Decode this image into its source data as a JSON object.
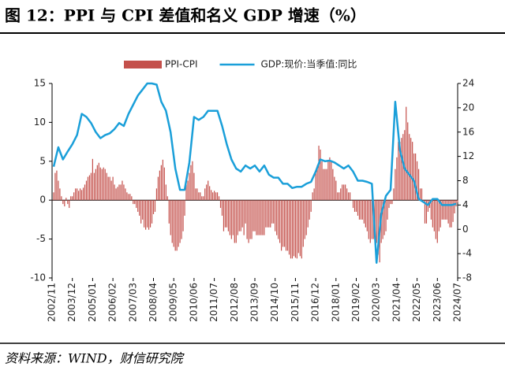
{
  "chart_data": {
    "type": "bar-line",
    "title": "图 12：PPI 与 CPI 差值和名义 GDP 增速（%）",
    "source": "资料来源：WIND，财信研究院",
    "categories": [
      "2002/11",
      null,
      null,
      null,
      null,
      null,
      null,
      null,
      null,
      null,
      null,
      null,
      null,
      "2003/12",
      null,
      null,
      null,
      null,
      null,
      null,
      null,
      null,
      null,
      null,
      null,
      null,
      "2005/01",
      null,
      null,
      null,
      null,
      null,
      null,
      null,
      null,
      null,
      null,
      null,
      null,
      "2006/02",
      null,
      null,
      null,
      null,
      null,
      null,
      null,
      null,
      null,
      null,
      null,
      null,
      "2007/03",
      null,
      null,
      null,
      null,
      null,
      null,
      null,
      null,
      null,
      null,
      null,
      null,
      "2008/04",
      null,
      null,
      null,
      null,
      null,
      null,
      null,
      null,
      null,
      null,
      null,
      null,
      "2009/05",
      null,
      null,
      null,
      null,
      null,
      null,
      null,
      null,
      null,
      null,
      null,
      null,
      "2010/06",
      null,
      null,
      null,
      null,
      null,
      null,
      null,
      null,
      null,
      null,
      null,
      null,
      "2011/07",
      null,
      null,
      null,
      null,
      null,
      null,
      null,
      null,
      null,
      null,
      null,
      null,
      "2012/08",
      null,
      null,
      null,
      null,
      null,
      null,
      null,
      null,
      null,
      null,
      null,
      null,
      "2013/09",
      null,
      null,
      null,
      null,
      null,
      null,
      null,
      null,
      null,
      null,
      null,
      null,
      "2014/10",
      null,
      null,
      null,
      null,
      null,
      null,
      null,
      null,
      null,
      null,
      null,
      null,
      "2015/11",
      null,
      null,
      null,
      null,
      null,
      null,
      null,
      null,
      null,
      null,
      null,
      null,
      "2016/12",
      null,
      null,
      null,
      null,
      null,
      null,
      null,
      null,
      null,
      null,
      null,
      null,
      "2018/01",
      null,
      null,
      null,
      null,
      null,
      null,
      null,
      null,
      null,
      null,
      null,
      null,
      "2019/02",
      null,
      null,
      null,
      null,
      null,
      null,
      null,
      null,
      null,
      null,
      null,
      null,
      "2020/03",
      null,
      null,
      null,
      null,
      null,
      null,
      null,
      null,
      null,
      null,
      null,
      null,
      "2021/04",
      null,
      null,
      null,
      null,
      null,
      null,
      null,
      null,
      null,
      null,
      null,
      null,
      "2022/05",
      null,
      null,
      null,
      null,
      null,
      null,
      null,
      null,
      null,
      null,
      null,
      null,
      "2023/06",
      null,
      null,
      null,
      null,
      null,
      null,
      null,
      null,
      null,
      null,
      null,
      null,
      "2024/07"
    ],
    "series": [
      {
        "name": "PPI-CPI",
        "type": "bar",
        "color": "#c4504b",
        "values": [
          0,
          1,
          3.5,
          3.8,
          2.5,
          1.5,
          0.5,
          -0.5,
          -0.8,
          0.3,
          -0.5,
          -1,
          0.5,
          0.5,
          1,
          1.5,
          1.5,
          1.2,
          1.5,
          1.3,
          1.6,
          2,
          2.5,
          3,
          3.2,
          3.5,
          5.3,
          3.5,
          4,
          4.5,
          4.8,
          4.2,
          4,
          4.2,
          4,
          3.5,
          3,
          3,
          2.5,
          3,
          2,
          1.5,
          1.7,
          2,
          2,
          2.5,
          2,
          1.5,
          1,
          0.8,
          0.8,
          0.5,
          -0.5,
          -0.5,
          -1,
          -1.5,
          -2,
          -3,
          -2.5,
          -3.5,
          -3.8,
          -3.5,
          -3.8,
          -3.5,
          -3,
          -1.8,
          -1.5,
          1.5,
          3,
          3.8,
          4.5,
          5.2,
          4.2,
          2,
          0.5,
          -3,
          -4.5,
          -5.5,
          -6,
          -6.5,
          -6.5,
          -6,
          -5.5,
          -5,
          -4,
          -2,
          2,
          2.5,
          3.5,
          4.5,
          5,
          3.5,
          1.5,
          1.5,
          1,
          1,
          0.5,
          0.5,
          1.5,
          2,
          2.5,
          1.8,
          1.3,
          1,
          1.2,
          1,
          1,
          0.5,
          -1,
          -2,
          -4,
          -3.5,
          -3.5,
          -4,
          -4.5,
          -5,
          -4.5,
          -5.5,
          -5.5,
          -4.5,
          -4,
          -4,
          -3.5,
          -4.5,
          -3,
          -5,
          -5.5,
          -5,
          -5,
          -4,
          -4,
          -4.5,
          -4.5,
          -4.5,
          -4.5,
          -4.5,
          -4.5,
          -3.5,
          -3.5,
          -3.5,
          -3.5,
          -3,
          -3,
          -4,
          -4.5,
          -5,
          -5.5,
          -6.5,
          -6,
          -6,
          -6.5,
          -6.5,
          -7,
          -7.5,
          -7.5,
          -7.2,
          -7.4,
          -7.5,
          -6.8,
          -7.2,
          -7.5,
          -6,
          -5,
          -4.5,
          -3.5,
          -2.5,
          -1.5,
          1,
          1.5,
          3.5,
          4.5,
          7,
          6.5,
          5,
          4,
          4,
          4,
          5,
          5.5,
          5,
          4,
          3,
          2.5,
          1,
          1,
          1.5,
          2,
          2,
          2,
          1.5,
          1,
          1,
          0,
          -1,
          -1.5,
          -1.5,
          -2,
          -2.5,
          -2.5,
          -2.5,
          -3,
          -3.5,
          -4,
          -5,
          -5.5,
          -5,
          -5,
          -5,
          -5.5,
          -7,
          -8,
          -5.5,
          -5,
          -4.5,
          -4,
          -2.5,
          -1,
          -0.5,
          -0.5,
          1.5,
          4,
          5.5,
          7.5,
          7.5,
          8,
          8.5,
          9,
          12,
          10,
          8.5,
          8,
          7.5,
          6,
          6,
          5,
          4,
          1.5,
          1.5,
          0,
          -3,
          -3,
          -1.5,
          -1,
          -2.5,
          -3.5,
          -4,
          -5,
          -5.5,
          -4,
          -3.5,
          -2.5,
          -2.5,
          -2.5,
          -2.5,
          -3,
          -3.5,
          -3.5,
          -2.8,
          -1.7,
          -0.8,
          -0.3
        ]
      },
      {
        "name": "GDP:现价:当季值:同比",
        "type": "line",
        "axis": "y2",
        "color": "#1a9fd9",
        "x": [
          "2002/12",
          "2003/03",
          "2003/06",
          "2003/09",
          "2003/12",
          "2004/03",
          "2004/06",
          "2004/09",
          "2004/12",
          "2005/03",
          "2005/06",
          "2005/09",
          "2005/12",
          "2006/03",
          "2006/06",
          "2006/09",
          "2006/12",
          "2007/03",
          "2007/06",
          "2007/09",
          "2007/12",
          "2008/03",
          "2008/06",
          "2008/09",
          "2008/12",
          "2009/03",
          "2009/06",
          "2009/09",
          "2009/12",
          "2010/03",
          "2010/06",
          "2010/09",
          "2010/12",
          "2011/03",
          "2011/06",
          "2011/09",
          "2011/12",
          "2012/03",
          "2012/06",
          "2012/09",
          "2012/12",
          "2013/03",
          "2013/06",
          "2013/09",
          "2013/12",
          "2014/03",
          "2014/06",
          "2014/09",
          "2014/12",
          "2015/03",
          "2015/06",
          "2015/09",
          "2015/12",
          "2016/03",
          "2016/06",
          "2016/09",
          "2016/12",
          "2017/03",
          "2017/06",
          "2017/09",
          "2017/12",
          "2018/03",
          "2018/06",
          "2018/09",
          "2018/12",
          "2019/03",
          "2019/06",
          "2019/09",
          "2019/12",
          "2020/03",
          "2020/06",
          "2020/09",
          "2020/12",
          "2021/03",
          "2021/06",
          "2021/09",
          "2021/12",
          "2022/03",
          "2022/06",
          "2022/09",
          "2022/12",
          "2023/03",
          "2023/06",
          "2023/09",
          "2023/12",
          "2024/03",
          "2024/06"
        ],
        "values": [
          10.3,
          13.5,
          11.5,
          12.8,
          14,
          15.5,
          19,
          18.5,
          17.5,
          16,
          15,
          15.5,
          15.8,
          16.5,
          17.5,
          17,
          19,
          20.5,
          22,
          23,
          24,
          24,
          23.8,
          21,
          19.5,
          16,
          10,
          6.5,
          6.5,
          11,
          18.5,
          18,
          18.5,
          19.5,
          19.5,
          19.5,
          17,
          14,
          11.5,
          10,
          9.5,
          10.5,
          10,
          10.5,
          9.5,
          10.5,
          9,
          8.5,
          8.5,
          7.5,
          7.5,
          6.8,
          7,
          7,
          7.5,
          7.8,
          9.5,
          11.5,
          11.2,
          11.3,
          11,
          10.5,
          10,
          10.5,
          9.5,
          8,
          8,
          7.8,
          7.5,
          -5.5,
          2.5,
          5.5,
          6.5,
          21,
          13,
          10,
          9,
          8,
          5,
          4.5,
          4,
          5,
          5,
          4,
          4,
          4,
          4.2
        ]
      }
    ],
    "ylim": [
      -10,
      15
    ],
    "yticks": [
      -10,
      -5,
      0,
      5,
      10,
      15
    ],
    "y2lim": [
      -8,
      24
    ],
    "y2ticks": [
      -8,
      -4,
      0,
      4,
      8,
      12,
      16,
      20,
      24
    ],
    "grid": false,
    "legend": "top"
  }
}
